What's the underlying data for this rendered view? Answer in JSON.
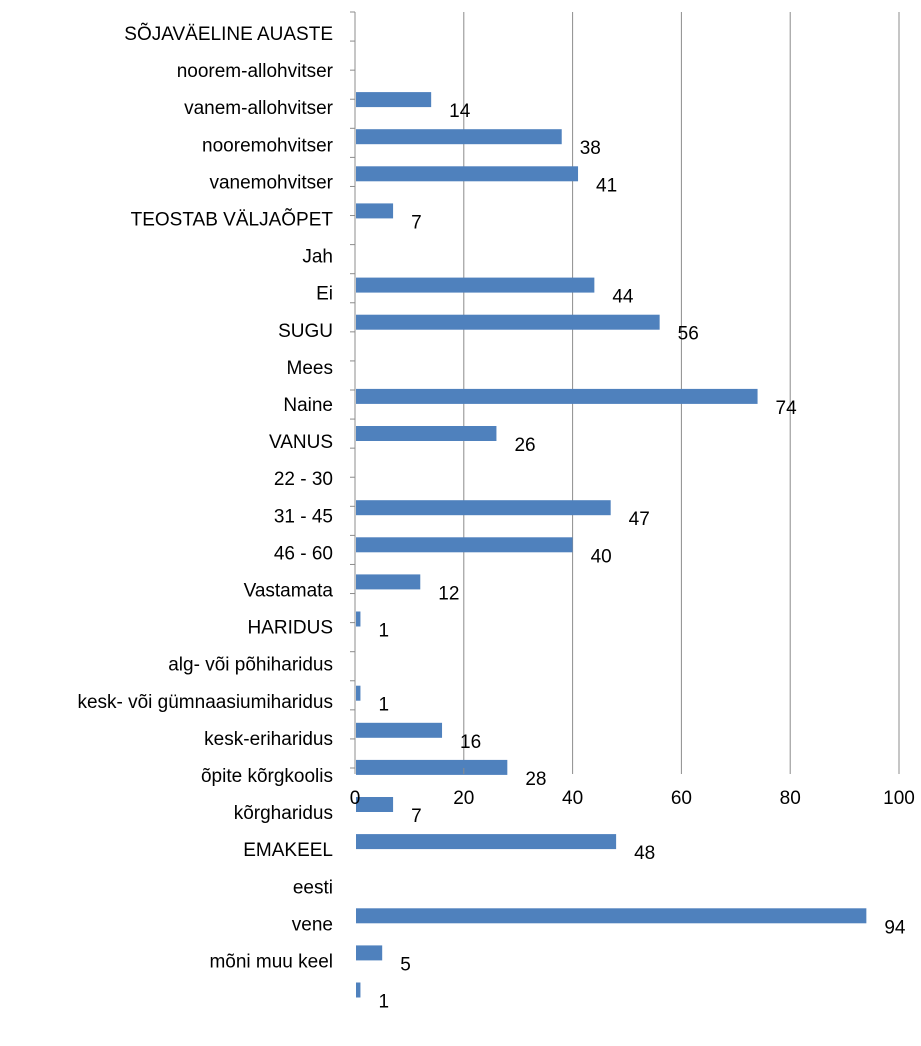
{
  "chart_data": {
    "type": "bar",
    "orientation": "horizontal",
    "title": "",
    "xlabel": "",
    "ylabel": "",
    "xlim": [
      0,
      100
    ],
    "x_ticks": [
      0,
      20,
      40,
      60,
      80,
      100
    ],
    "grid": "vertical",
    "bar_color": "#4F81BD",
    "categories": [
      "SÕJAVÄELINE AUASTE",
      "noorem-allohvitser",
      "vanem-allohvitser",
      "nooremohvitser",
      "vanemohvitser",
      "TEOSTAB VÄLJAÕPET",
      "Jah",
      "Ei",
      "SUGU",
      "Mees",
      "Naine",
      "VANUS",
      "22 - 30",
      "31 - 45",
      "46 - 60",
      "Vastamata",
      "HARIDUS",
      "alg- või põhiharidus",
      "kesk- või gümnaasiumiharidus",
      "kesk-eriharidus",
      "õpite kõrgkoolis",
      "kõrgharidus",
      "EMAKEEL",
      "eesti",
      "vene",
      "mõni muu keel"
    ],
    "values": [
      null,
      14,
      38,
      41,
      7,
      null,
      44,
      56,
      null,
      74,
      26,
      null,
      47,
      40,
      12,
      1,
      null,
      1,
      16,
      28,
      7,
      48,
      null,
      94,
      5,
      1
    ]
  }
}
